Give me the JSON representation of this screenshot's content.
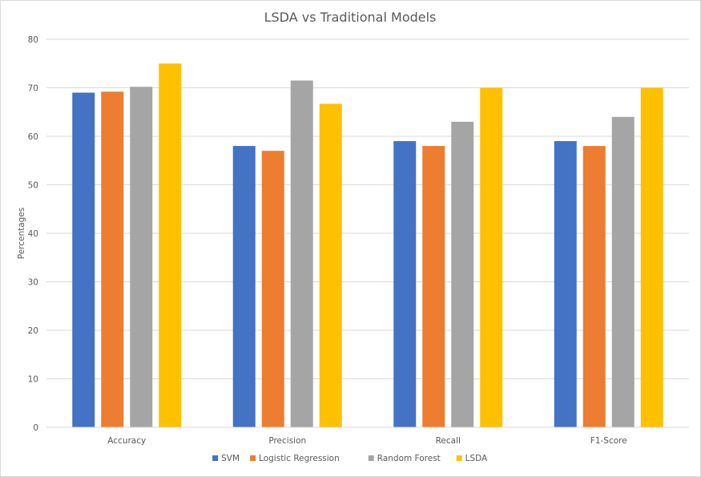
{
  "chart_data": {
    "type": "bar",
    "title": "LSDA vs Traditional Models",
    "xlabel": "",
    "ylabel": "Percentages",
    "categories": [
      "Accuracy",
      "Precision",
      "Recall",
      "F1-Score"
    ],
    "series": [
      {
        "name": "SVM",
        "color": "#4472C4",
        "values": [
          69,
          58,
          59,
          59
        ]
      },
      {
        "name": "Logistic Regression",
        "color": "#ED7D31",
        "values": [
          69.2,
          57,
          58,
          58
        ]
      },
      {
        "name": "Random Forest",
        "color": "#A5A5A5",
        "values": [
          70.2,
          71.5,
          63,
          64
        ]
      },
      {
        "name": "LSDA",
        "color": "#FFC000",
        "values": [
          75,
          66.7,
          70,
          70
        ]
      }
    ],
    "ylim": [
      0,
      80
    ],
    "yticks": [
      "0",
      "10",
      "20",
      "30",
      "40",
      "50",
      "60",
      "70",
      "80"
    ],
    "grid": true,
    "legend_position": "bottom"
  }
}
